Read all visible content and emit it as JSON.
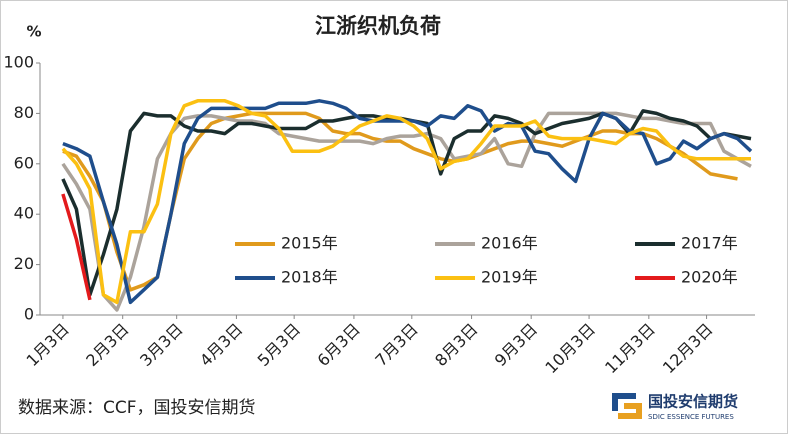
{
  "chart_data": {
    "type": "line",
    "title": "江浙织机负荷",
    "y_label": "%",
    "source": "数据来源：CCF，国投安信期货",
    "logo": {
      "name": "国投安信期货",
      "subtitle": "SDIC ESSENCE FUTURES"
    },
    "x": [
      0,
      1,
      2,
      3,
      4,
      5,
      6,
      7,
      8,
      9,
      10,
      11,
      12,
      13,
      14,
      15,
      16,
      17,
      18,
      19,
      20,
      21,
      22,
      23,
      24,
      25,
      26,
      27,
      28,
      29,
      30,
      31,
      32,
      33,
      34,
      35,
      36,
      37,
      38,
      39,
      40,
      41,
      42,
      43,
      44,
      45,
      46,
      47,
      48,
      49,
      50,
      51
    ],
    "xlim": [
      -1.7,
      51.3
    ],
    "xticks": [
      {
        "value": 0,
        "label": "1月3日"
      },
      {
        "value": 4.43,
        "label": "2月3日"
      },
      {
        "value": 8.43,
        "label": "3月3日"
      },
      {
        "value": 12.86,
        "label": "4月3日"
      },
      {
        "value": 17.14,
        "label": "5月3日"
      },
      {
        "value": 21.57,
        "label": "6月3日"
      },
      {
        "value": 25.86,
        "label": "7月3日"
      },
      {
        "value": 30.29,
        "label": "8月3日"
      },
      {
        "value": 34.71,
        "label": "9月3日"
      },
      {
        "value": 39,
        "label": "10月3日"
      },
      {
        "value": 43.43,
        "label": "11月3日"
      },
      {
        "value": 47.71,
        "label": "12月3日"
      }
    ],
    "ylim": [
      0,
      100
    ],
    "yticks": [
      0,
      20,
      40,
      60,
      80,
      100
    ],
    "grid": false,
    "series": [
      {
        "name": "2015年",
        "color": "#e09a1c",
        "values": [
          65,
          63,
          55,
          45,
          25,
          10,
          12,
          15,
          40,
          62,
          70,
          76,
          78,
          79,
          80,
          80,
          80,
          80,
          80,
          78,
          73,
          72,
          72,
          70,
          69,
          69,
          66,
          64,
          62,
          61,
          62,
          64,
          66,
          68,
          69,
          69,
          68,
          67,
          69,
          71,
          73,
          73,
          72,
          72,
          70,
          67,
          64,
          60,
          56,
          55,
          54,
          null
        ]
      },
      {
        "name": "2016年",
        "color": "#aba39b",
        "values": [
          60,
          52,
          42,
          8,
          2,
          15,
          35,
          62,
          72,
          78,
          79,
          79,
          78,
          77,
          77,
          76,
          72,
          71,
          70,
          69,
          69,
          69,
          69,
          68,
          70,
          71,
          71,
          72,
          70,
          62,
          63,
          64,
          70,
          60,
          59,
          72,
          80,
          80,
          80,
          80,
          80,
          80,
          79,
          78,
          78,
          77,
          76,
          76,
          76,
          65,
          62,
          59
        ]
      },
      {
        "name": "2017年",
        "color": "#1b2e2e",
        "values": [
          54,
          42,
          8,
          24,
          42,
          73,
          80,
          79,
          79,
          75,
          73,
          73,
          72,
          76,
          76,
          75,
          74,
          74,
          74,
          77,
          77,
          78,
          79,
          79,
          78,
          78,
          77,
          76,
          56,
          70,
          73,
          73,
          79,
          78,
          76,
          72,
          74,
          76,
          77,
          78,
          80,
          78,
          72,
          81,
          80,
          78,
          77,
          75,
          70,
          72,
          71,
          70
        ]
      },
      {
        "name": "2018年",
        "color": "#1f4e8c",
        "values": [
          68,
          66,
          63,
          45,
          28,
          5,
          10,
          15,
          40,
          68,
          78,
          82,
          82,
          82,
          82,
          82,
          84,
          84,
          84,
          85,
          84,
          82,
          78,
          77,
          77,
          77,
          77,
          75,
          79,
          78,
          83,
          81,
          73,
          76,
          75,
          65,
          64,
          58,
          53,
          70,
          80,
          78,
          73,
          72,
          60,
          62,
          69,
          66,
          70,
          72,
          70,
          65
        ]
      },
      {
        "name": "2019年",
        "color": "#fbc012",
        "values": [
          66,
          60,
          50,
          8,
          5,
          33,
          33,
          44,
          72,
          83,
          85,
          85,
          85,
          83,
          80,
          79,
          74,
          65,
          65,
          65,
          67,
          71,
          75,
          77,
          79,
          78,
          75,
          70,
          58,
          61,
          62,
          68,
          75,
          75,
          75,
          77,
          71,
          70,
          70,
          70,
          69,
          68,
          72,
          74,
          73,
          67,
          63,
          62,
          62,
          62,
          62,
          62
        ]
      },
      {
        "name": "2020年",
        "color": "#e31a1c",
        "values": [
          48,
          30,
          6,
          null,
          null,
          null,
          null,
          null,
          null,
          null,
          null,
          null,
          null,
          null,
          null,
          null,
          null,
          null,
          null,
          null,
          null,
          null,
          null,
          null,
          null,
          null,
          null,
          null,
          null,
          null,
          null,
          null,
          null,
          null,
          null,
          null,
          null,
          null,
          null,
          null,
          null,
          null,
          null,
          null,
          null,
          null,
          null,
          null,
          null,
          null,
          null,
          null
        ]
      }
    ]
  }
}
